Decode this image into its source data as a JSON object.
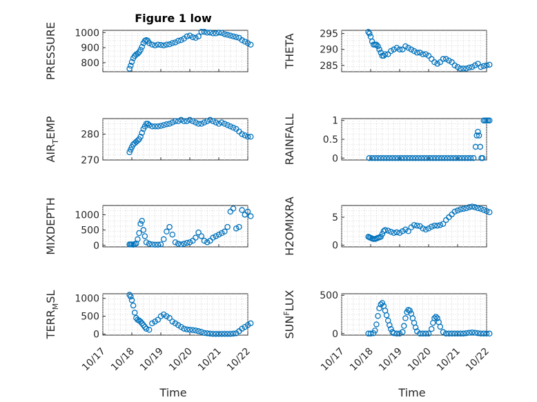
{
  "chart_data": [
    {
      "type": "scatter",
      "title": "Figure 1 low",
      "ylabel": "PRESSURE",
      "ylim": [
        740,
        1015
      ],
      "yticks": [
        800,
        900,
        1000
      ],
      "x": [
        0.92,
        0.96,
        1.0,
        1.05,
        1.1,
        1.15,
        1.2,
        1.25,
        1.3,
        1.35,
        1.4,
        1.45,
        1.5,
        1.55,
        1.6,
        1.7,
        1.8,
        1.9,
        2.0,
        2.1,
        2.2,
        2.3,
        2.4,
        2.5,
        2.6,
        2.7,
        2.8,
        2.9,
        3.0,
        3.1,
        3.2,
        3.3,
        3.4,
        3.5,
        3.6,
        3.7,
        3.8,
        3.9,
        4.0,
        4.1,
        4.2,
        4.3,
        4.4,
        4.5,
        4.6,
        4.7,
        4.8,
        4.9,
        5.0,
        5.1
      ],
      "y": [
        760,
        780,
        805,
        830,
        845,
        855,
        860,
        870,
        885,
        905,
        930,
        945,
        950,
        945,
        930,
        920,
        915,
        920,
        918,
        915,
        920,
        922,
        930,
        935,
        945,
        950,
        960,
        975,
        980,
        970,
        965,
        975,
        1005,
        1005,
        1000,
        1000,
        995,
        995,
        1000,
        998,
        990,
        985,
        980,
        975,
        970,
        965,
        950,
        940,
        930,
        920
      ]
    },
    {
      "type": "scatter",
      "title": "",
      "ylabel": "THETA",
      "ylim": [
        283,
        296
      ],
      "yticks": [
        285,
        290,
        295
      ],
      "x": [
        0.92,
        0.96,
        1.0,
        1.05,
        1.1,
        1.15,
        1.2,
        1.25,
        1.3,
        1.35,
        1.4,
        1.45,
        1.5,
        1.6,
        1.7,
        1.8,
        1.9,
        2.0,
        2.1,
        2.2,
        2.3,
        2.4,
        2.5,
        2.6,
        2.7,
        2.8,
        2.9,
        3.0,
        3.1,
        3.2,
        3.3,
        3.4,
        3.5,
        3.6,
        3.7,
        3.8,
        3.9,
        4.0,
        4.1,
        4.2,
        4.3,
        4.4,
        4.5,
        4.6,
        4.7,
        4.8,
        4.9,
        5.0,
        5.1
      ],
      "y": [
        295.5,
        295,
        294,
        292.5,
        291.5,
        291.5,
        291.5,
        291,
        290,
        289,
        288,
        288,
        288.5,
        288.5,
        289.5,
        290,
        290.5,
        290,
        290,
        291,
        290.5,
        290,
        289.5,
        289,
        289,
        288.5,
        288.5,
        288,
        287,
        286,
        285.5,
        286,
        287,
        287,
        286.5,
        286,
        285,
        284.5,
        284,
        284,
        284,
        284.3,
        284.5,
        285,
        285.5,
        284.5,
        284.8,
        285,
        285.2
      ]
    },
    {
      "type": "scatter",
      "title": "",
      "ylabel": "AIR_TEMP",
      "ylim": [
        270,
        286
      ],
      "yticks": [
        270,
        280
      ],
      "x": [
        0.92,
        0.96,
        1.0,
        1.05,
        1.1,
        1.15,
        1.2,
        1.25,
        1.3,
        1.35,
        1.4,
        1.45,
        1.5,
        1.55,
        1.6,
        1.7,
        1.8,
        1.9,
        2.0,
        2.1,
        2.2,
        2.3,
        2.4,
        2.5,
        2.6,
        2.7,
        2.8,
        2.9,
        3.0,
        3.1,
        3.2,
        3.3,
        3.4,
        3.5,
        3.6,
        3.7,
        3.8,
        3.9,
        4.0,
        4.1,
        4.2,
        4.3,
        4.4,
        4.5,
        4.6,
        4.7,
        4.8,
        4.9,
        5.0,
        5.1
      ],
      "y": [
        273,
        274,
        275,
        276,
        276.5,
        277,
        277.5,
        278,
        279,
        280.5,
        282,
        283,
        284,
        284,
        283.5,
        283,
        283,
        283,
        283.2,
        283.5,
        283.8,
        284,
        284.5,
        285,
        285,
        285.5,
        285,
        285,
        285.5,
        285,
        284.5,
        284,
        284,
        284.5,
        285,
        285.5,
        285,
        284.5,
        284,
        284.5,
        284,
        283.5,
        283,
        282.5,
        282,
        281,
        280,
        279.5,
        279,
        279
      ]
    },
    {
      "type": "scatter",
      "title": "",
      "ylabel": "RAINFALL",
      "ylim": [
        -0.05,
        1.05
      ],
      "yticks": [
        0,
        0.5,
        1
      ],
      "x": [
        0.95,
        1.05,
        1.15,
        1.25,
        1.35,
        1.45,
        1.55,
        1.65,
        1.75,
        1.85,
        1.95,
        2.05,
        2.15,
        2.25,
        2.35,
        2.45,
        2.55,
        2.65,
        2.75,
        2.85,
        2.95,
        3.05,
        3.15,
        3.25,
        3.35,
        3.45,
        3.55,
        3.65,
        3.75,
        3.85,
        3.95,
        4.05,
        4.15,
        4.25,
        4.35,
        4.45,
        4.55,
        4.62,
        4.66,
        4.7,
        4.74,
        4.78,
        4.82,
        4.86,
        4.9,
        4.95,
        5.0,
        5.05,
        5.1
      ],
      "y": [
        0,
        0,
        0,
        0,
        0,
        0,
        0,
        0,
        0,
        0,
        0,
        0,
        0,
        0,
        0,
        0,
        0,
        0,
        0,
        0,
        0,
        0,
        0,
        0,
        0,
        0,
        0,
        0,
        0,
        0,
        0,
        0,
        0,
        0,
        0,
        0,
        0,
        0.3,
        0.6,
        0.7,
        0.6,
        0.3,
        0,
        0,
        1,
        1,
        1,
        1,
        1
      ]
    },
    {
      "type": "scatter",
      "title": "",
      "ylabel": "MIXDEPTH",
      "ylim": [
        -50,
        1300
      ],
      "yticks": [
        0,
        500,
        1000
      ],
      "x": [
        0.92,
        0.96,
        1.0,
        1.05,
        1.1,
        1.15,
        1.2,
        1.25,
        1.3,
        1.35,
        1.4,
        1.45,
        1.5,
        1.6,
        1.7,
        1.8,
        1.9,
        2.0,
        2.1,
        2.2,
        2.3,
        2.4,
        2.5,
        2.6,
        2.7,
        2.8,
        2.9,
        3.0,
        3.1,
        3.2,
        3.3,
        3.4,
        3.5,
        3.6,
        3.7,
        3.8,
        3.9,
        4.0,
        4.1,
        4.2,
        4.3,
        4.4,
        4.5,
        4.6,
        4.7,
        4.8,
        4.9,
        5.0,
        5.1
      ],
      "y": [
        30,
        30,
        30,
        20,
        40,
        60,
        200,
        400,
        700,
        800,
        500,
        300,
        100,
        50,
        30,
        20,
        20,
        30,
        200,
        450,
        600,
        350,
        100,
        50,
        30,
        50,
        80,
        100,
        150,
        250,
        420,
        300,
        150,
        100,
        150,
        250,
        300,
        350,
        400,
        450,
        600,
        1100,
        1200,
        550,
        600,
        1150,
        1000,
        1100,
        950
      ]
    },
    {
      "type": "scatter",
      "title": "",
      "ylabel": "H2OMIXRA",
      "ylim": [
        -0.3,
        7.1
      ],
      "yticks": [
        0,
        5
      ],
      "x": [
        0.92,
        0.96,
        1.0,
        1.05,
        1.1,
        1.15,
        1.2,
        1.25,
        1.3,
        1.35,
        1.4,
        1.45,
        1.5,
        1.6,
        1.7,
        1.8,
        1.9,
        2.0,
        2.1,
        2.2,
        2.3,
        2.4,
        2.5,
        2.6,
        2.7,
        2.8,
        2.9,
        3.0,
        3.1,
        3.2,
        3.3,
        3.4,
        3.5,
        3.6,
        3.7,
        3.8,
        3.9,
        4.0,
        4.1,
        4.2,
        4.3,
        4.4,
        4.5,
        4.6,
        4.7,
        4.8,
        4.9,
        5.0,
        5.1
      ],
      "y": [
        1.5,
        1.4,
        1.3,
        1.2,
        1.1,
        1.1,
        1.2,
        1.3,
        1.4,
        1.5,
        2.0,
        2.5,
        2.7,
        2.6,
        2.4,
        2.2,
        2.3,
        2.2,
        2.5,
        2.8,
        2.5,
        3.2,
        3.6,
        3.5,
        3.4,
        3.0,
        2.8,
        3.0,
        3.3,
        3.5,
        3.5,
        3.6,
        3.8,
        4.5,
        5.0,
        5.5,
        6.0,
        6.2,
        6.4,
        6.5,
        6.6,
        6.8,
        6.9,
        6.8,
        6.6,
        6.5,
        6.3,
        6.1,
        5.9
      ]
    },
    {
      "type": "scatter",
      "title": "",
      "ylabel": "TERR_MSL",
      "ylim": [
        -30,
        1130
      ],
      "yticks": [
        0,
        500,
        1000
      ],
      "x": [
        0.92,
        0.96,
        1.0,
        1.05,
        1.1,
        1.15,
        1.2,
        1.25,
        1.3,
        1.35,
        1.4,
        1.45,
        1.5,
        1.6,
        1.7,
        1.8,
        1.9,
        2.0,
        2.1,
        2.2,
        2.3,
        2.4,
        2.5,
        2.6,
        2.7,
        2.8,
        2.9,
        3.0,
        3.1,
        3.2,
        3.3,
        3.4,
        3.5,
        3.6,
        3.7,
        3.8,
        3.9,
        4.0,
        4.1,
        4.2,
        4.3,
        4.4,
        4.5,
        4.6,
        4.7,
        4.8,
        4.9,
        5.0,
        5.1
      ],
      "y": [
        1100,
        1050,
        950,
        800,
        600,
        450,
        400,
        380,
        350,
        300,
        250,
        200,
        150,
        120,
        300,
        350,
        400,
        500,
        550,
        500,
        450,
        350,
        300,
        250,
        200,
        150,
        130,
        120,
        110,
        100,
        80,
        60,
        30,
        20,
        10,
        5,
        5,
        5,
        5,
        5,
        5,
        5,
        10,
        20,
        80,
        150,
        200,
        250,
        300
      ]
    },
    {
      "type": "scatter",
      "title": "",
      "ylabel": "SUN_FLUX",
      "ylim": [
        -20,
        520
      ],
      "yticks": [
        0,
        500
      ],
      "x": [
        0.92,
        1.0,
        1.1,
        1.15,
        1.2,
        1.25,
        1.3,
        1.35,
        1.4,
        1.45,
        1.5,
        1.55,
        1.6,
        1.65,
        1.7,
        1.75,
        1.8,
        1.9,
        2.0,
        2.1,
        2.15,
        2.2,
        2.25,
        2.3,
        2.35,
        2.4,
        2.45,
        2.5,
        2.55,
        2.6,
        2.7,
        2.8,
        2.9,
        3.0,
        3.1,
        3.15,
        3.2,
        3.25,
        3.3,
        3.35,
        3.4,
        3.5,
        3.6,
        3.7,
        3.8,
        3.9,
        4.0,
        4.1,
        4.2,
        4.3,
        4.4,
        4.5,
        4.6,
        4.7,
        4.8,
        4.9,
        5.0,
        5.1
      ],
      "y": [
        0,
        0,
        5,
        40,
        120,
        230,
        330,
        380,
        400,
        360,
        300,
        240,
        170,
        110,
        60,
        20,
        5,
        0,
        0,
        20,
        100,
        200,
        280,
        310,
        300,
        260,
        200,
        140,
        80,
        30,
        0,
        0,
        0,
        0,
        60,
        140,
        200,
        220,
        200,
        150,
        90,
        20,
        0,
        0,
        0,
        0,
        0,
        0,
        0,
        5,
        10,
        15,
        10,
        5,
        0,
        0,
        0,
        0
      ]
    }
  ],
  "xlabel": "Time",
  "xticks": [
    "10/17",
    "10/18",
    "10/19",
    "10/20",
    "10/21",
    "10/22"
  ],
  "xlim": [
    0,
    5
  ]
}
